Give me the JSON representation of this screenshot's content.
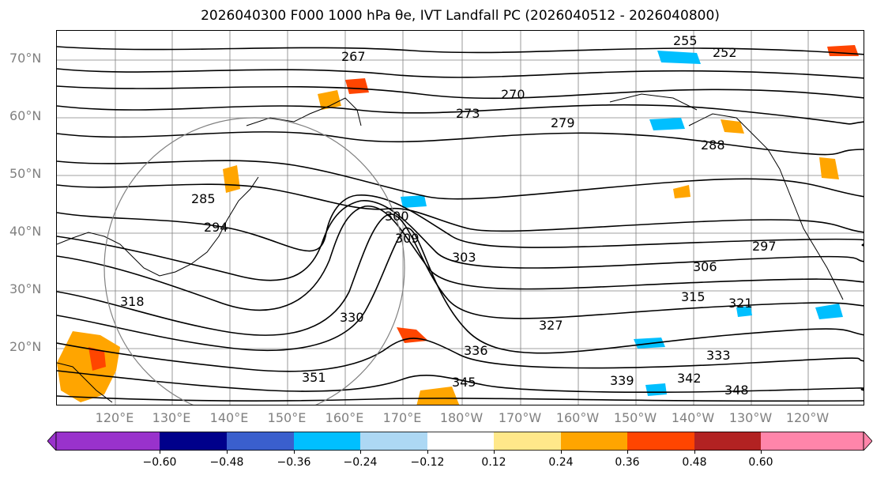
{
  "title": "2026040300 F000 1000 hPa θe, IVT Landfall PC (2026040512 - 2026040800)",
  "map": {
    "lat_labels": [
      "70°N",
      "60°N",
      "50°N",
      "40°N",
      "30°N",
      "20°N"
    ],
    "lon_labels": [
      "120°E",
      "130°E",
      "140°E",
      "150°E",
      "160°E",
      "170°E",
      "180°W",
      "170°W",
      "160°W",
      "150°W",
      "140°W",
      "130°W",
      "120°W"
    ],
    "contour_labels": [
      "255",
      "252",
      "267",
      "270",
      "273",
      "279",
      "285",
      "288",
      "294",
      "297",
      "300",
      "303",
      "306",
      "309",
      "315",
      "318",
      "321",
      "327",
      "330",
      "333",
      "336",
      "339",
      "342",
      "345",
      "348",
      "351"
    ],
    "colors": {
      "grid": "#808080",
      "contour": "#000000",
      "circle": "#808080"
    }
  },
  "colorbar": {
    "tick_labels": [
      "−0.60",
      "−0.48",
      "−0.36",
      "−0.24",
      "−0.12",
      "0.12",
      "0.24",
      "0.36",
      "0.48",
      "0.60"
    ],
    "colors": [
      "#9932cc",
      "#00008b",
      "#3a5fcd",
      "#00bfff",
      "#add8f4",
      "#ffffff",
      "#ffe88a",
      "#ffa500",
      "#ff4500",
      "#b22222",
      "#ff85aa"
    ]
  }
}
